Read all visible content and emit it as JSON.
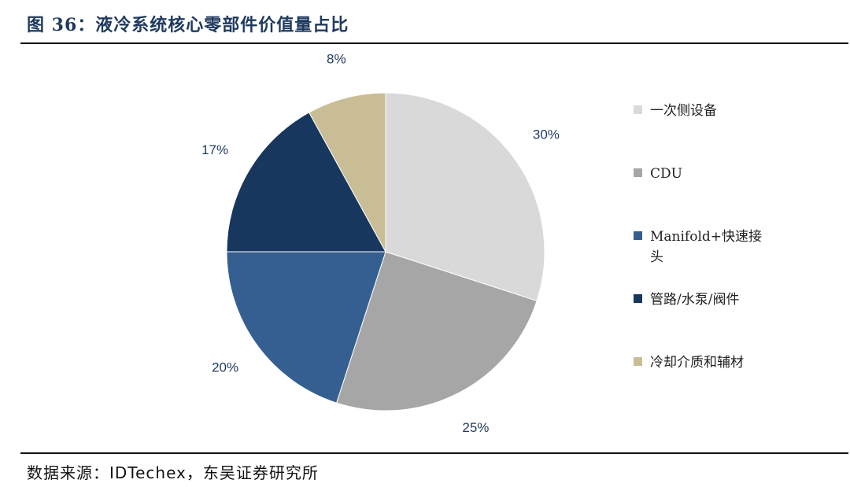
{
  "header": {
    "figure_title": "图 36：液冷系统核心零部件价值量占比"
  },
  "footer": {
    "source": "数据来源：IDTechex，东吴证券研究所"
  },
  "chart_data": {
    "type": "pie",
    "title": "",
    "categories": [
      "一次侧设备",
      "CDU",
      "Manifold+快速接头",
      "管路/水泵/阀件",
      "冷却介质和辅材"
    ],
    "values": [
      30,
      25,
      20,
      17,
      8
    ],
    "labels": [
      "30%",
      "25%",
      "20%",
      "17%",
      "8%"
    ],
    "colors": [
      "#d9d9d9",
      "#a6a6a6",
      "#365f91",
      "#17375e",
      "#c9bd96"
    ],
    "legend_position": "right"
  }
}
